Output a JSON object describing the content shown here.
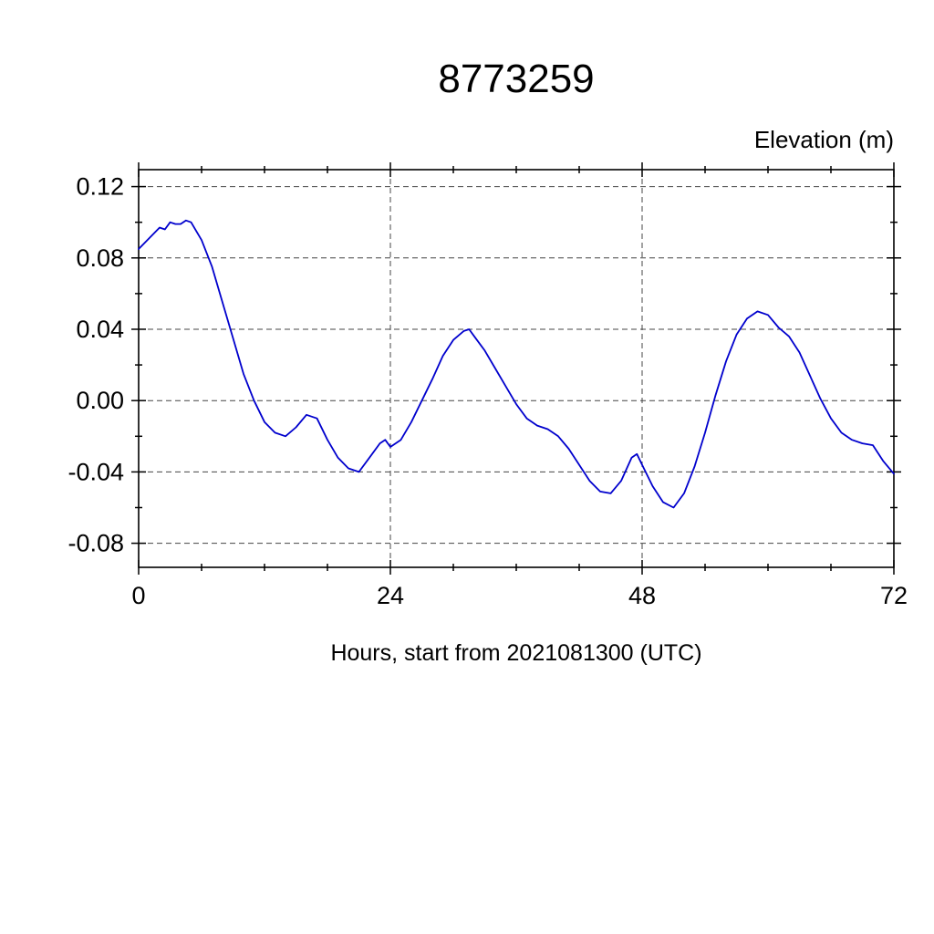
{
  "title": "8773259",
  "ylabel": "Elevation (m)",
  "xlabel": "Hours, start from 2021081300 (UTC)",
  "chart_data": {
    "type": "line",
    "title": "8773259",
    "xlabel": "Hours, start from 2021081300 (UTC)",
    "ylabel": "Elevation (m)",
    "xlim": [
      0,
      72
    ],
    "ylim": [
      -0.0935,
      0.1295
    ],
    "xticks": [
      0,
      24,
      48,
      72
    ],
    "xtick_labels": [
      "0",
      "24",
      "48",
      "72"
    ],
    "yticks": [
      -0.08,
      -0.04,
      0.0,
      0.04,
      0.08,
      0.12
    ],
    "ytick_labels": [
      "-0.08",
      "-0.04",
      "0.00",
      "0.04",
      "0.08",
      "0.12"
    ],
    "x_minor_step": 6,
    "y_minor_step": 0.02,
    "grid": true,
    "grid_style": "dashed",
    "legend": "none",
    "line_color": "#0000cd",
    "frame_color": "#000000",
    "series": [
      {
        "name": "elevation",
        "x": [
          0,
          1,
          2,
          2.5,
          3,
          3.5,
          4,
          4.5,
          5,
          6,
          7,
          8,
          9,
          10,
          11,
          12,
          13,
          14,
          15,
          16,
          17,
          18,
          19,
          20,
          21,
          22,
          23,
          23.5,
          24,
          25,
          26,
          27,
          28,
          29,
          30,
          31,
          31.5,
          32,
          33,
          34,
          35,
          36,
          37,
          38,
          39,
          40,
          41,
          42,
          43,
          44,
          45,
          46,
          47,
          47.5,
          48,
          49,
          50,
          51,
          52,
          53,
          54,
          55,
          56,
          57,
          58,
          59,
          60,
          61,
          62,
          63,
          64,
          65,
          66,
          67,
          68,
          69,
          70,
          71,
          72
        ],
        "y": [
          0.085,
          0.091,
          0.097,
          0.096,
          0.1,
          0.099,
          0.099,
          0.101,
          0.1,
          0.09,
          0.075,
          0.055,
          0.035,
          0.015,
          0.0,
          -0.012,
          -0.018,
          -0.02,
          -0.015,
          -0.008,
          -0.01,
          -0.022,
          -0.032,
          -0.038,
          -0.04,
          -0.032,
          -0.024,
          -0.022,
          -0.026,
          -0.022,
          -0.012,
          0.0,
          0.012,
          0.025,
          0.034,
          0.039,
          0.04,
          0.036,
          0.028,
          0.018,
          0.008,
          -0.002,
          -0.01,
          -0.014,
          -0.016,
          -0.02,
          -0.027,
          -0.036,
          -0.045,
          -0.051,
          -0.052,
          -0.045,
          -0.032,
          -0.03,
          -0.036,
          -0.048,
          -0.057,
          -0.06,
          -0.052,
          -0.037,
          -0.018,
          0.003,
          0.022,
          0.037,
          0.046,
          0.05,
          0.048,
          0.041,
          0.036,
          0.027,
          0.014,
          0.001,
          -0.01,
          -0.018,
          -0.022,
          -0.024,
          -0.025,
          -0.034,
          -0.041
        ]
      }
    ]
  }
}
